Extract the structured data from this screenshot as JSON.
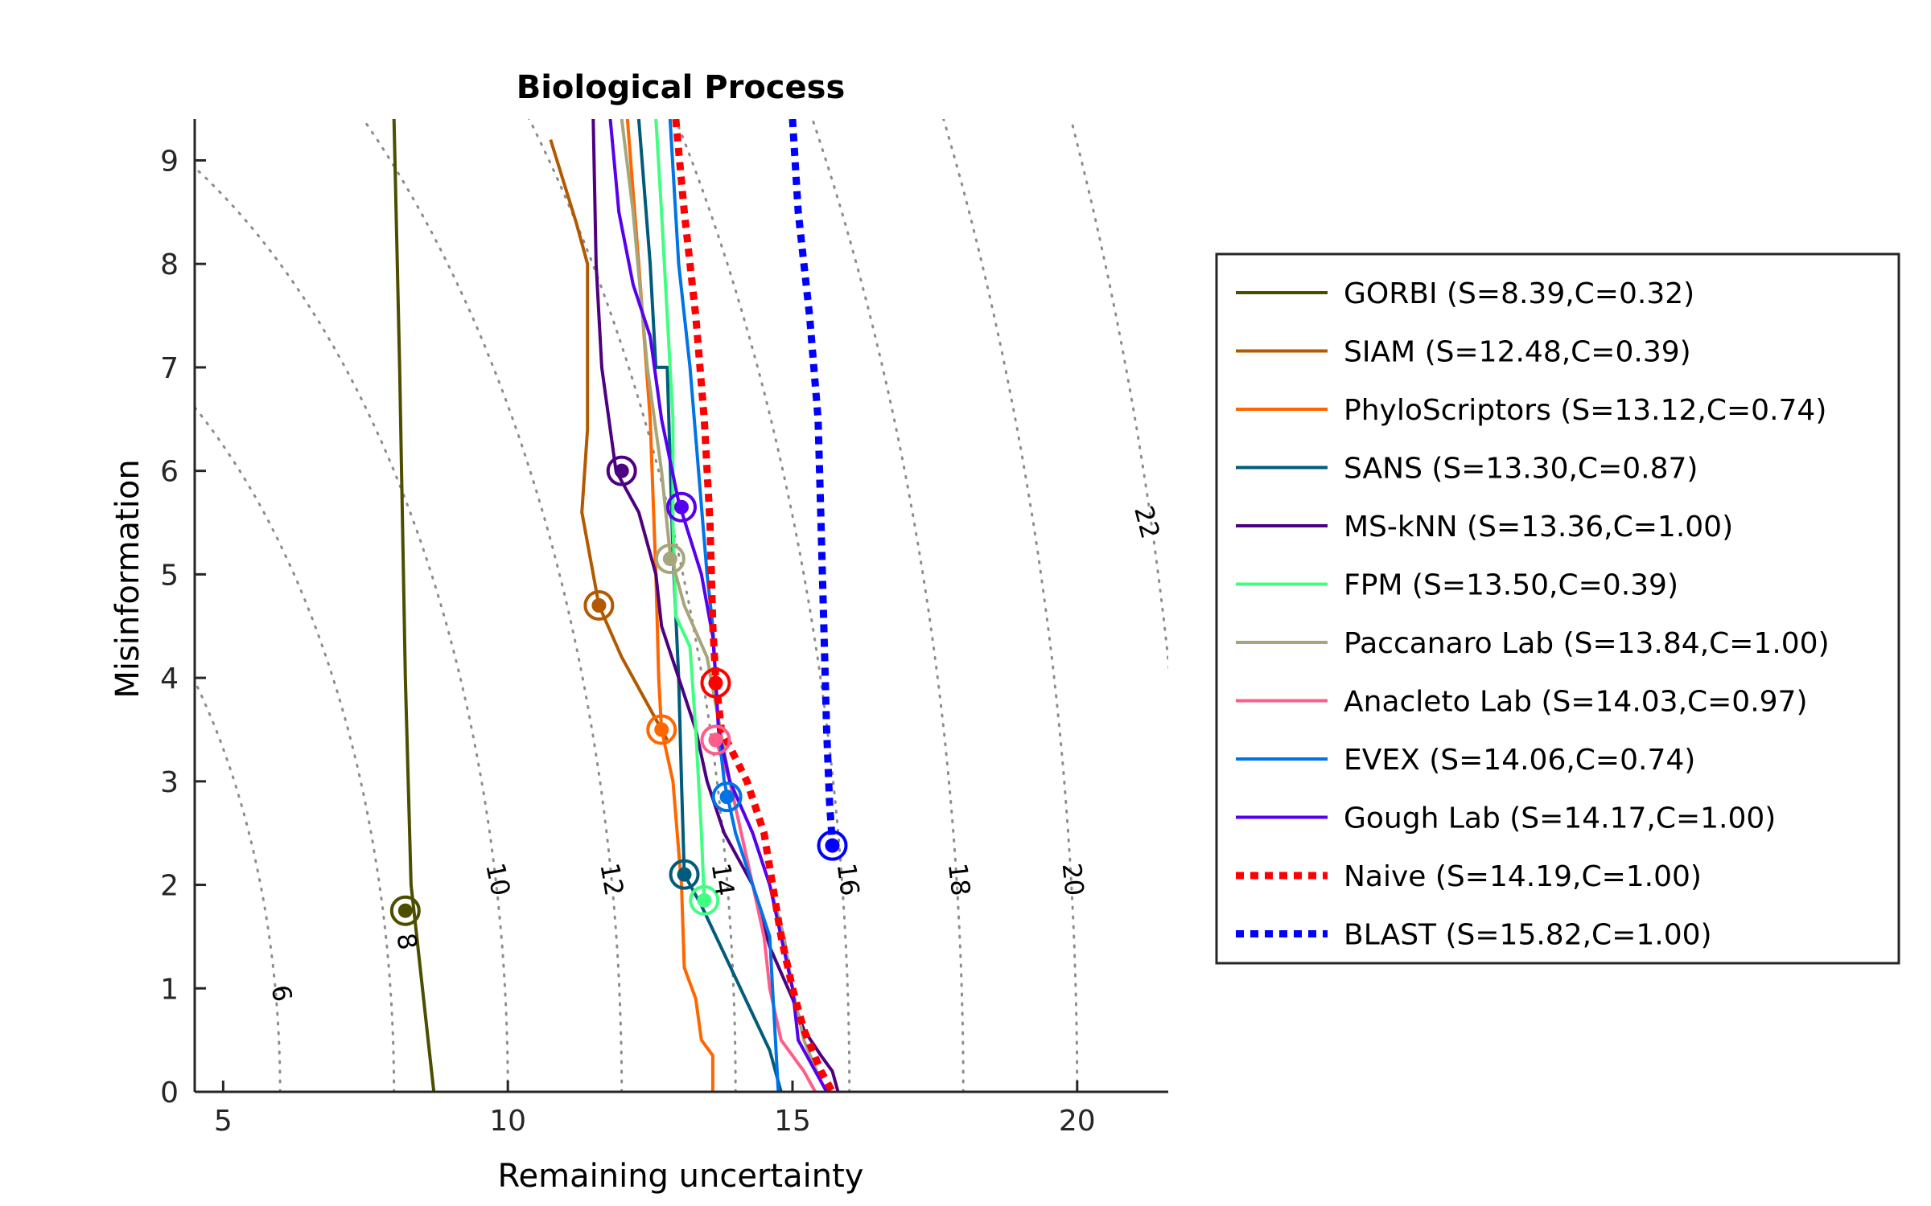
{
  "chart_data": {
    "type": "line",
    "title": "Biological Process",
    "xlabel": "Remaining uncertainty",
    "ylabel": "Misinformation",
    "xlim": [
      4.5,
      21.6
    ],
    "ylim": [
      0,
      9.4
    ],
    "xticks": [
      5,
      10,
      15,
      20
    ],
    "yticks": [
      0,
      1,
      2,
      3,
      4,
      5,
      6,
      7,
      8,
      9
    ],
    "grid": false,
    "legend_position": "right",
    "contours": [
      {
        "label": "6",
        "r": 6,
        "label_at": [
          6.0,
          0.95
        ]
      },
      {
        "label": "8",
        "r": 8,
        "label_at": [
          8.2,
          1.45
        ]
      },
      {
        "label": "10",
        "r": 10,
        "label_at": [
          9.8,
          2.05
        ]
      },
      {
        "label": "12",
        "r": 12,
        "label_at": [
          11.8,
          2.05
        ]
      },
      {
        "label": "14",
        "r": 14,
        "label_at": [
          13.75,
          2.05
        ]
      },
      {
        "label": "16",
        "r": 16,
        "label_at": [
          15.95,
          2.05
        ]
      },
      {
        "label": "18",
        "r": 18,
        "label_at": [
          17.9,
          2.05
        ]
      },
      {
        "label": "20",
        "r": 20,
        "label_at": [
          19.9,
          2.05
        ]
      },
      {
        "label": "22",
        "r": 22,
        "label_at": [
          21.2,
          5.5
        ]
      }
    ],
    "series": [
      {
        "name": "GORBI",
        "legend": "GORBI (S=8.39,C=0.32)",
        "color": "#4d4d00",
        "style": "solid",
        "points": [
          [
            8.0,
            9.4
          ],
          [
            8.1,
            7.0
          ],
          [
            8.2,
            4.0
          ],
          [
            8.3,
            2.0
          ],
          [
            8.4,
            1.5
          ],
          [
            8.6,
            0.5
          ],
          [
            8.7,
            0.0
          ]
        ],
        "marker": [
          8.2,
          1.75
        ]
      },
      {
        "name": "SIAM",
        "legend": "SIAM (S=12.48,C=0.39)",
        "color": "#b35900",
        "style": "solid",
        "points": [
          [
            10.75,
            9.2
          ],
          [
            11.2,
            8.4
          ],
          [
            11.4,
            8.0
          ],
          [
            11.4,
            6.4
          ],
          [
            11.3,
            5.6
          ],
          [
            11.6,
            4.7
          ],
          [
            12.0,
            4.2
          ],
          [
            12.7,
            3.5
          ],
          [
            12.8,
            3.4
          ]
        ],
        "marker": [
          11.6,
          4.7
        ]
      },
      {
        "name": "PhyloScriptors",
        "legend": "PhyloScriptors (S=13.12,C=0.74)",
        "color": "#ff6600",
        "style": "solid",
        "points": [
          [
            12.1,
            9.4
          ],
          [
            12.3,
            8.0
          ],
          [
            12.5,
            6.5
          ],
          [
            12.6,
            5.0
          ],
          [
            12.65,
            4.0
          ],
          [
            12.7,
            3.5
          ],
          [
            12.9,
            3.0
          ],
          [
            13.05,
            2.0
          ],
          [
            13.1,
            1.2
          ],
          [
            13.3,
            0.9
          ],
          [
            13.4,
            0.5
          ],
          [
            13.6,
            0.35
          ],
          [
            13.6,
            0.0
          ]
        ],
        "marker": [
          12.7,
          3.5
        ]
      },
      {
        "name": "SANS",
        "legend": "SANS (S=13.30,C=0.87)",
        "color": "#005c7a",
        "style": "solid",
        "points": [
          [
            12.3,
            9.4
          ],
          [
            12.5,
            8.0
          ],
          [
            12.6,
            7.0
          ],
          [
            12.8,
            7.0
          ],
          [
            12.9,
            5.2
          ],
          [
            13.0,
            4.0
          ],
          [
            13.05,
            3.0
          ],
          [
            13.1,
            2.1
          ],
          [
            13.4,
            1.8
          ],
          [
            14.0,
            1.1
          ],
          [
            14.6,
            0.4
          ],
          [
            14.8,
            0.0
          ]
        ],
        "marker": [
          13.1,
          2.1
        ]
      },
      {
        "name": "MS-kNN",
        "legend": "MS-kNN (S=13.36,C=1.00)",
        "color": "#4d0080",
        "style": "solid",
        "points": [
          [
            11.5,
            9.4
          ],
          [
            11.55,
            8.0
          ],
          [
            11.65,
            7.0
          ],
          [
            11.9,
            6.0
          ],
          [
            12.3,
            5.6
          ],
          [
            12.6,
            5.0
          ],
          [
            12.7,
            4.5
          ],
          [
            13.0,
            4.0
          ],
          [
            13.3,
            3.5
          ],
          [
            13.5,
            3.0
          ],
          [
            13.8,
            2.5
          ],
          [
            14.3,
            2.0
          ],
          [
            14.6,
            1.4
          ],
          [
            15.0,
            0.9
          ],
          [
            15.2,
            0.6
          ],
          [
            15.5,
            0.35
          ],
          [
            15.7,
            0.2
          ],
          [
            15.8,
            0.0
          ]
        ],
        "marker": [
          12.0,
          6.0
        ]
      },
      {
        "name": "FPM",
        "legend": "FPM (S=13.50,C=0.39)",
        "color": "#40ff80",
        "style": "solid",
        "points": [
          [
            12.6,
            9.4
          ],
          [
            12.7,
            8.5
          ],
          [
            12.8,
            7.5
          ],
          [
            12.9,
            6.5
          ],
          [
            12.9,
            5.5
          ],
          [
            12.95,
            4.6
          ],
          [
            13.2,
            4.3
          ],
          [
            13.3,
            3.5
          ],
          [
            13.4,
            2.5
          ],
          [
            13.45,
            1.85
          ]
        ],
        "marker": [
          13.45,
          1.85
        ]
      },
      {
        "name": "Paccanaro Lab",
        "legend": "Paccanaro Lab (S=13.84,C=1.00)",
        "color": "#a6a67a",
        "style": "solid",
        "points": [
          [
            12.0,
            9.4
          ],
          [
            12.2,
            8.5
          ],
          [
            12.45,
            7.0
          ],
          [
            12.7,
            6.0
          ],
          [
            12.85,
            5.2
          ],
          [
            13.1,
            4.7
          ],
          [
            13.5,
            4.2
          ],
          [
            13.7,
            3.6
          ],
          [
            13.9,
            3.0
          ],
          [
            14.3,
            2.5
          ],
          [
            14.6,
            2.0
          ],
          [
            14.85,
            1.5
          ],
          [
            15.0,
            1.0
          ],
          [
            15.2,
            0.5
          ],
          [
            15.5,
            0.1
          ],
          [
            15.6,
            0.0
          ]
        ],
        "marker": [
          12.85,
          5.15
        ]
      },
      {
        "name": "Anacleto Lab",
        "legend": "Anacleto Lab (S=14.03,C=0.97)",
        "color": "#ff5c8a",
        "style": "solid",
        "points": [
          [
            13.65,
            3.4
          ],
          [
            13.9,
            3.0
          ],
          [
            14.1,
            2.5
          ],
          [
            14.3,
            2.0
          ],
          [
            14.5,
            1.5
          ],
          [
            14.6,
            1.0
          ],
          [
            14.8,
            0.5
          ],
          [
            15.2,
            0.2
          ],
          [
            15.4,
            0.0
          ]
        ],
        "marker": [
          13.65,
          3.4
        ]
      },
      {
        "name": "EVEX",
        "legend": "EVEX (S=14.06,C=0.74)",
        "color": "#0073e6",
        "style": "solid",
        "points": [
          [
            12.85,
            9.4
          ],
          [
            13.0,
            8.0
          ],
          [
            13.2,
            7.0
          ],
          [
            13.35,
            6.0
          ],
          [
            13.5,
            5.0
          ],
          [
            13.6,
            4.5
          ],
          [
            13.65,
            4.0
          ],
          [
            13.7,
            3.5
          ],
          [
            13.8,
            3.0
          ],
          [
            14.0,
            2.5
          ],
          [
            14.3,
            2.0
          ],
          [
            14.6,
            1.5
          ],
          [
            14.65,
            1.0
          ],
          [
            14.7,
            0.5
          ],
          [
            14.75,
            0.0
          ]
        ],
        "marker": [
          13.85,
          2.85
        ]
      },
      {
        "name": "Gough Lab",
        "legend": "Gough Lab (S=14.17,C=1.00)",
        "color": "#5500ee",
        "style": "solid",
        "points": [
          [
            11.8,
            9.4
          ],
          [
            11.95,
            8.5
          ],
          [
            12.2,
            7.8
          ],
          [
            12.5,
            7.3
          ],
          [
            12.7,
            6.5
          ],
          [
            13.0,
            5.7
          ],
          [
            13.4,
            5.0
          ],
          [
            13.6,
            4.4
          ],
          [
            13.65,
            4.0
          ],
          [
            13.7,
            3.5
          ],
          [
            13.9,
            3.0
          ],
          [
            14.3,
            2.5
          ],
          [
            14.6,
            2.0
          ],
          [
            14.8,
            1.5
          ],
          [
            15.0,
            1.0
          ],
          [
            15.1,
            0.5
          ],
          [
            15.5,
            0.1
          ],
          [
            15.6,
            0.0
          ]
        ],
        "marker": [
          13.05,
          5.65
        ]
      },
      {
        "name": "Naive",
        "legend": "Naive (S=14.19,C=1.00)",
        "color": "#ff0000",
        "style": "dotted",
        "points": [
          [
            12.95,
            9.4
          ],
          [
            13.1,
            8.5
          ],
          [
            13.3,
            7.5
          ],
          [
            13.45,
            6.5
          ],
          [
            13.55,
            5.5
          ],
          [
            13.6,
            4.5
          ],
          [
            13.65,
            4.0
          ],
          [
            13.75,
            3.5
          ],
          [
            14.2,
            3.0
          ],
          [
            14.5,
            2.5
          ],
          [
            14.8,
            1.5
          ],
          [
            15.0,
            1.0
          ],
          [
            15.2,
            0.6
          ],
          [
            15.5,
            0.2
          ],
          [
            15.7,
            0.0
          ]
        ],
        "marker": [
          13.65,
          3.95
        ]
      },
      {
        "name": "BLAST",
        "legend": "BLAST (S=15.82,C=1.00)",
        "color": "#0000ff",
        "style": "dotted",
        "points": [
          [
            15.0,
            9.4
          ],
          [
            15.1,
            8.5
          ],
          [
            15.3,
            7.5
          ],
          [
            15.45,
            6.5
          ],
          [
            15.5,
            5.5
          ],
          [
            15.55,
            4.5
          ],
          [
            15.6,
            3.5
          ],
          [
            15.65,
            2.8
          ],
          [
            15.7,
            2.4
          ]
        ],
        "marker": [
          15.7,
          2.38
        ]
      }
    ]
  }
}
